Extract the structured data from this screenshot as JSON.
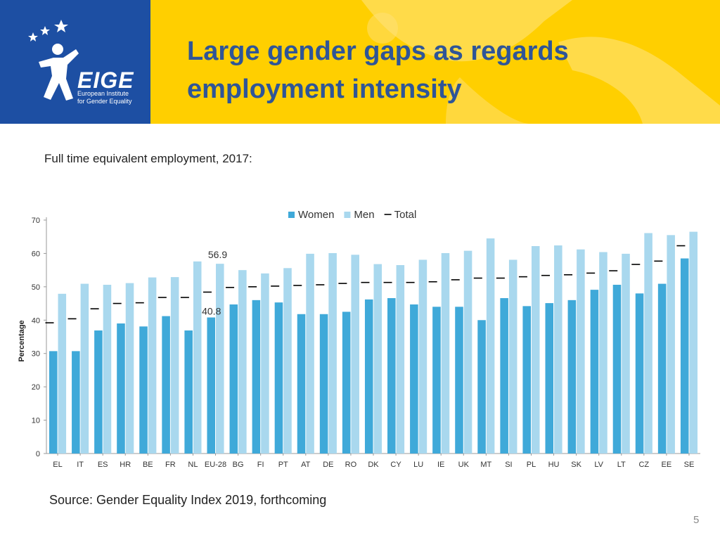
{
  "header": {
    "logo": {
      "name": "EIGE",
      "subtitle_lines": [
        "European Institute",
        "for Gender Equality"
      ]
    },
    "title_lines": [
      "Large gender gaps as regards",
      "employment intensity"
    ]
  },
  "subtitle": "Full time equivalent employment, 2017:",
  "source": "Source: Gender Equality Index 2019, forthcoming",
  "page_number": "5",
  "colors": {
    "logo_blue": "#1d4fa3",
    "header_yellow": "#ffcf00",
    "title_blue": "#2f5597",
    "women": "#3fa9d9",
    "men": "#a9d8ee",
    "total": "#000000"
  },
  "chart_data": {
    "type": "bar",
    "ylabel": "Percentage",
    "ylim": [
      0,
      70
    ],
    "yticks": [
      0,
      10,
      20,
      30,
      40,
      50,
      60,
      70
    ],
    "legend_position": "top",
    "categories": [
      "EL",
      "IT",
      "ES",
      "HR",
      "BE",
      "FR",
      "NL",
      "EU-28",
      "BG",
      "FI",
      "PT",
      "AT",
      "DE",
      "RO",
      "DK",
      "CY",
      "LU",
      "IE",
      "UK",
      "MT",
      "SI",
      "PL",
      "HU",
      "SK",
      "LV",
      "LT",
      "CZ",
      "EE",
      "SE"
    ],
    "series": [
      {
        "name": "Women",
        "kind": "bar",
        "values": [
          30.7,
          30.7,
          36.9,
          39.0,
          38.1,
          41.2,
          36.9,
          40.8,
          44.7,
          46.0,
          45.3,
          41.8,
          41.8,
          42.5,
          46.2,
          46.6,
          44.7,
          44.0,
          44.0,
          40.0,
          46.6,
          44.2,
          45.1,
          46.0,
          49.1,
          50.6,
          48.0,
          50.9,
          58.5
        ]
      },
      {
        "name": "Men",
        "kind": "bar",
        "values": [
          47.9,
          50.9,
          50.6,
          51.1,
          52.8,
          52.9,
          57.6,
          56.9,
          55.0,
          54.0,
          55.6,
          59.9,
          60.1,
          59.6,
          56.8,
          56.5,
          58.1,
          60.1,
          60.8,
          64.5,
          58.1,
          62.2,
          62.4,
          61.2,
          60.4,
          59.9,
          66.1,
          65.5,
          66.5
        ]
      },
      {
        "name": "Total",
        "kind": "marker",
        "values": [
          39.2,
          40.4,
          43.4,
          45.0,
          45.2,
          46.8,
          46.8,
          48.4,
          49.8,
          50.0,
          50.2,
          50.4,
          50.6,
          51.0,
          51.3,
          51.3,
          51.3,
          51.5,
          52.1,
          52.6,
          52.6,
          53.0,
          53.4,
          53.6,
          54.1,
          54.8,
          56.7,
          57.7,
          62.3
        ]
      }
    ],
    "annotations": [
      {
        "category": "EU-28",
        "series": "Men",
        "text": "56.9"
      },
      {
        "category": "EU-28",
        "series": "Women",
        "text": "40.8"
      }
    ]
  }
}
